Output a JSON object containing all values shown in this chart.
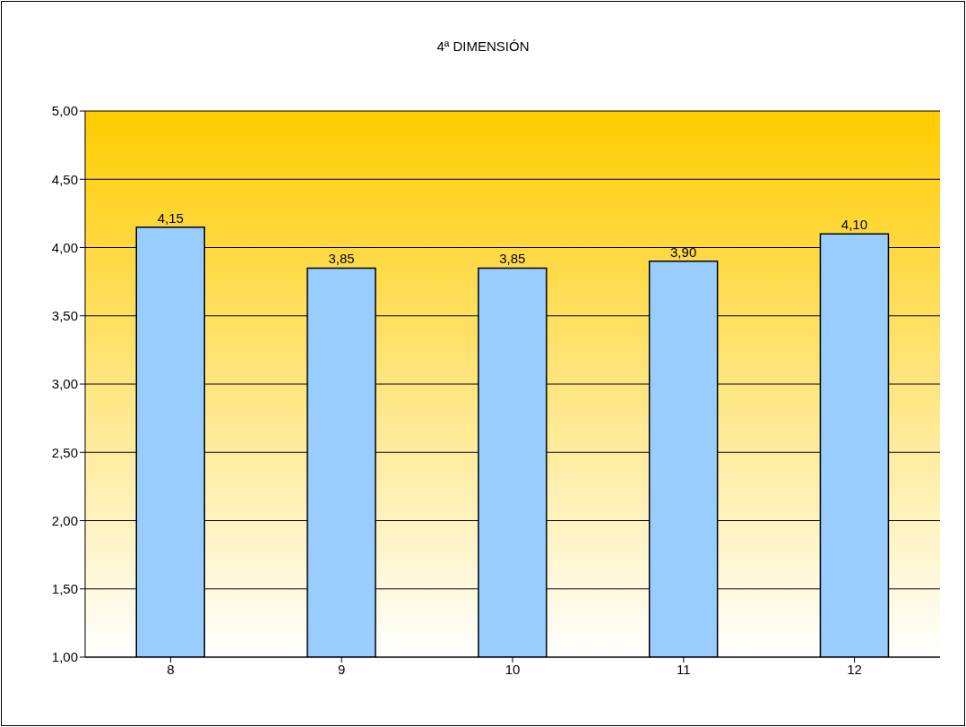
{
  "chart_data": {
    "type": "bar",
    "title": "4ª DIMENSIÓN",
    "categories": [
      "8",
      "9",
      "10",
      "11",
      "12"
    ],
    "values": [
      4.15,
      3.85,
      3.85,
      3.9,
      4.1
    ],
    "value_labels": [
      "4,15",
      "3,85",
      "3,85",
      "3,90",
      "4,10"
    ],
    "color": "#99ccff",
    "ylim": [
      1,
      5
    ],
    "yticks": [
      {
        "value": 1,
        "label": "1,00"
      },
      {
        "value": 1.5,
        "label": "1,50"
      },
      {
        "value": 2,
        "label": "2,00"
      },
      {
        "value": 2.5,
        "label": "2,50"
      },
      {
        "value": 3,
        "label": "3,00"
      },
      {
        "value": 3.5,
        "label": "3,50"
      },
      {
        "value": 4,
        "label": "4,00"
      },
      {
        "value": 4.5,
        "label": "4,50"
      },
      {
        "value": 5,
        "label": "5,00"
      }
    ],
    "grid": "y",
    "legend": false
  }
}
